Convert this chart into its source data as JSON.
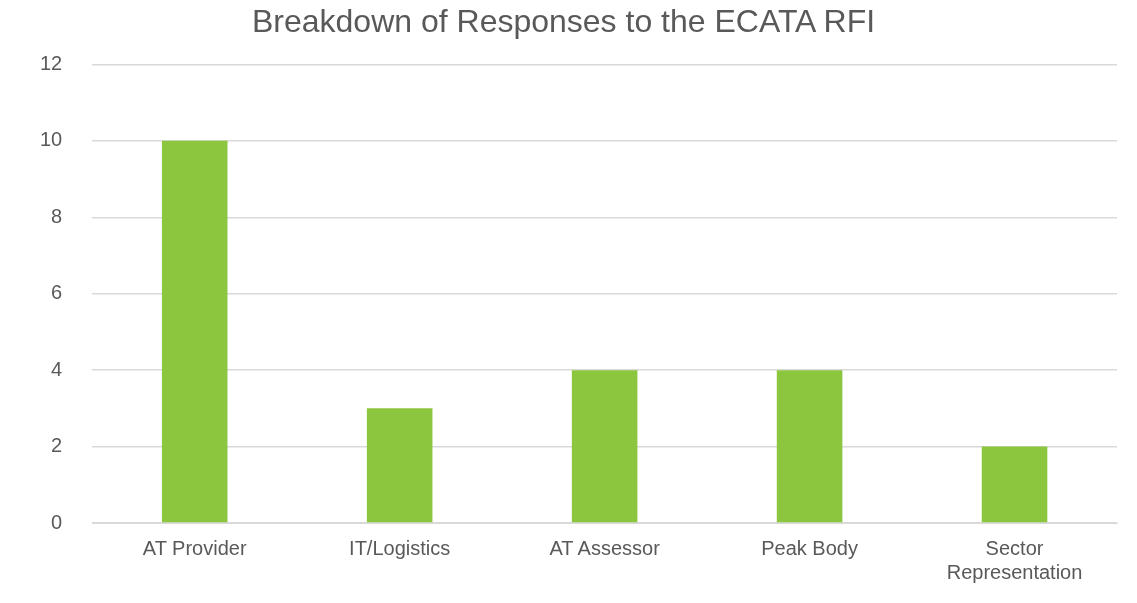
{
  "chart_data": {
    "type": "bar",
    "title": "Breakdown of Responses to the ECATA RFI",
    "categories": [
      "AT Provider",
      "IT/Logistics",
      "AT Assessor",
      "Peak Body",
      "Sector Representation"
    ],
    "values": [
      10,
      3,
      4,
      4,
      2
    ],
    "color": "#8cc63f",
    "ylim": [
      0,
      12
    ],
    "yticks": [
      0,
      2,
      4,
      6,
      8,
      10,
      12
    ],
    "grid": "y"
  }
}
